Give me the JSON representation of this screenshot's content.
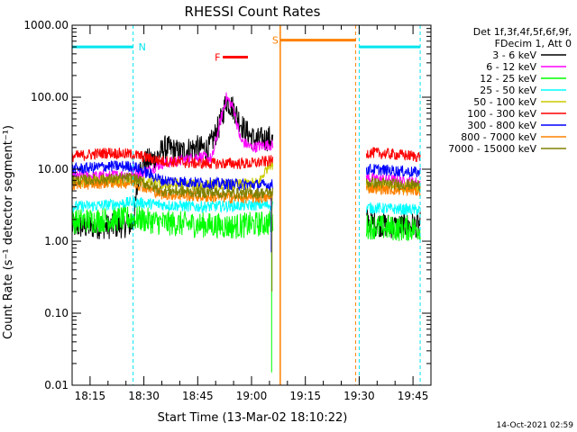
{
  "chart_data": {
    "type": "line",
    "title": "RHESSI Count Rates",
    "xlabel": "Start Time (13-Mar-02 18:10:22)",
    "ylabel": "Count Rate (s⁻¹ detector segment⁻¹)",
    "y_scale": "log",
    "ylim": [
      0.01,
      1000
    ],
    "xlim": [
      "18:10",
      "19:50"
    ],
    "x_ticks": [
      "18:15",
      "18:30",
      "18:45",
      "19:00",
      "19:15",
      "19:30",
      "19:45"
    ],
    "y_ticks": [
      "1000.00",
      "100.00",
      "10.00",
      "1.00",
      "0.10",
      "0.01"
    ],
    "legend_position": "right",
    "legend_header": [
      "Det 1f,3f,4f,5f,6f,9f,",
      "FDecim 1, Att 0"
    ],
    "timestamp": "14-Oct-2021 02:59",
    "annotations": [
      {
        "label": "N",
        "color": "#00e5ee",
        "segments": [
          [
            "18:10",
            "18:27"
          ],
          [
            "19:30",
            "19:47"
          ]
        ],
        "level": 500
      },
      {
        "label": "F",
        "color": "#ff0000",
        "segments": [
          [
            "18:52",
            "18:59"
          ]
        ],
        "level": 360
      },
      {
        "label": "S",
        "color": "#ff8000",
        "segments": [
          [
            "19:08",
            "19:29"
          ]
        ],
        "level": 620
      }
    ],
    "dashed_lines": [
      {
        "color": "#00e5ee",
        "x": [
          "18:10",
          "18:27",
          "19:30",
          "19:47"
        ]
      },
      {
        "color": "#ff8000",
        "x": [
          "19:08",
          "19:29"
        ]
      }
    ],
    "gap": [
      "19:06",
      "19:32"
    ],
    "series": [
      {
        "name": "3 - 6 keV",
        "color": "#000000",
        "x": [
          "18:10",
          "18:20",
          "18:27",
          "18:29",
          "18:33",
          "18:36",
          "18:40",
          "18:44",
          "18:48",
          "18:51",
          "18:53",
          "18:55",
          "18:58",
          "19:01",
          "19:05",
          "19:33",
          "19:40",
          "19:47"
        ],
        "values": [
          1.6,
          1.6,
          1.7,
          12,
          14,
          20,
          17,
          20,
          19,
          40,
          90,
          70,
          35,
          25,
          27,
          1.8,
          1.6,
          1.7
        ]
      },
      {
        "name": "6 - 12 keV",
        "color": "#ff00ff",
        "x": [
          "18:10",
          "18:20",
          "18:27",
          "18:30",
          "18:35",
          "18:40",
          "18:45",
          "18:49",
          "18:51",
          "18:53",
          "18:55",
          "18:57",
          "19:00",
          "19:05",
          "19:33",
          "19:40",
          "19:47"
        ],
        "values": [
          8,
          8,
          8.5,
          9,
          12,
          13,
          15,
          14,
          40,
          100,
          70,
          25,
          20,
          22,
          7.5,
          7,
          6.5
        ]
      },
      {
        "name": "12 - 25 keV",
        "color": "#00ff00",
        "x": [
          "18:10",
          "18:20",
          "18:27",
          "18:35",
          "18:45",
          "18:55",
          "19:05",
          "19:33",
          "19:40",
          "19:47"
        ],
        "values": [
          1.9,
          2.0,
          2.1,
          1.8,
          1.7,
          1.6,
          1.8,
          1.6,
          1.5,
          1.5
        ]
      },
      {
        "name": "25 - 50 keV",
        "color": "#00ffff",
        "x": [
          "18:10",
          "18:20",
          "18:27",
          "18:35",
          "18:45",
          "18:55",
          "19:05",
          "19:33",
          "19:40",
          "19:47"
        ],
        "values": [
          3,
          3.2,
          3.5,
          3.2,
          3,
          3.1,
          3.2,
          2.9,
          2.8,
          2.7
        ]
      },
      {
        "name": "50 - 100 keV",
        "color": "#cccc00",
        "x": [
          "18:10",
          "18:20",
          "18:27",
          "18:35",
          "18:45",
          "18:55",
          "19:02",
          "19:05",
          "19:33",
          "19:40",
          "19:47"
        ],
        "values": [
          6.5,
          6.8,
          7,
          6.2,
          6,
          6,
          6.5,
          12,
          6,
          5.8,
          5.5
        ]
      },
      {
        "name": "100 - 300 keV",
        "color": "#ff0000",
        "x": [
          "18:10",
          "18:20",
          "18:27",
          "18:35",
          "18:45",
          "18:55",
          "19:00",
          "19:05",
          "19:33",
          "19:40",
          "19:47"
        ],
        "values": [
          15,
          17,
          16,
          13,
          12,
          12,
          12,
          13,
          17,
          16,
          15
        ]
      },
      {
        "name": "300 - 800 keV",
        "color": "#0000ff",
        "x": [
          "18:10",
          "18:20",
          "18:27",
          "18:35",
          "18:45",
          "18:55",
          "19:05",
          "19:33",
          "19:40",
          "19:47"
        ],
        "values": [
          10,
          11,
          11,
          7,
          6.5,
          6.2,
          6,
          10,
          9.5,
          9
        ]
      },
      {
        "name": "800 - 7000 keV",
        "color": "#ff8000",
        "x": [
          "18:10",
          "18:20",
          "18:27",
          "18:35",
          "18:45",
          "18:55",
          "19:05",
          "19:33",
          "19:40",
          "19:47"
        ],
        "values": [
          6,
          6.5,
          6.5,
          4.5,
          4.2,
          4,
          4,
          5.5,
          5.2,
          5
        ]
      },
      {
        "name": "7000 - 15000 keV",
        "color": "#808000",
        "x": [
          "18:10",
          "18:20",
          "18:27",
          "18:35",
          "18:45",
          "18:55",
          "19:05",
          "19:33",
          "19:40",
          "19:47"
        ],
        "values": [
          7,
          7.3,
          7.5,
          5,
          4.8,
          4.6,
          4.7,
          6.5,
          6.2,
          6
        ]
      }
    ]
  }
}
